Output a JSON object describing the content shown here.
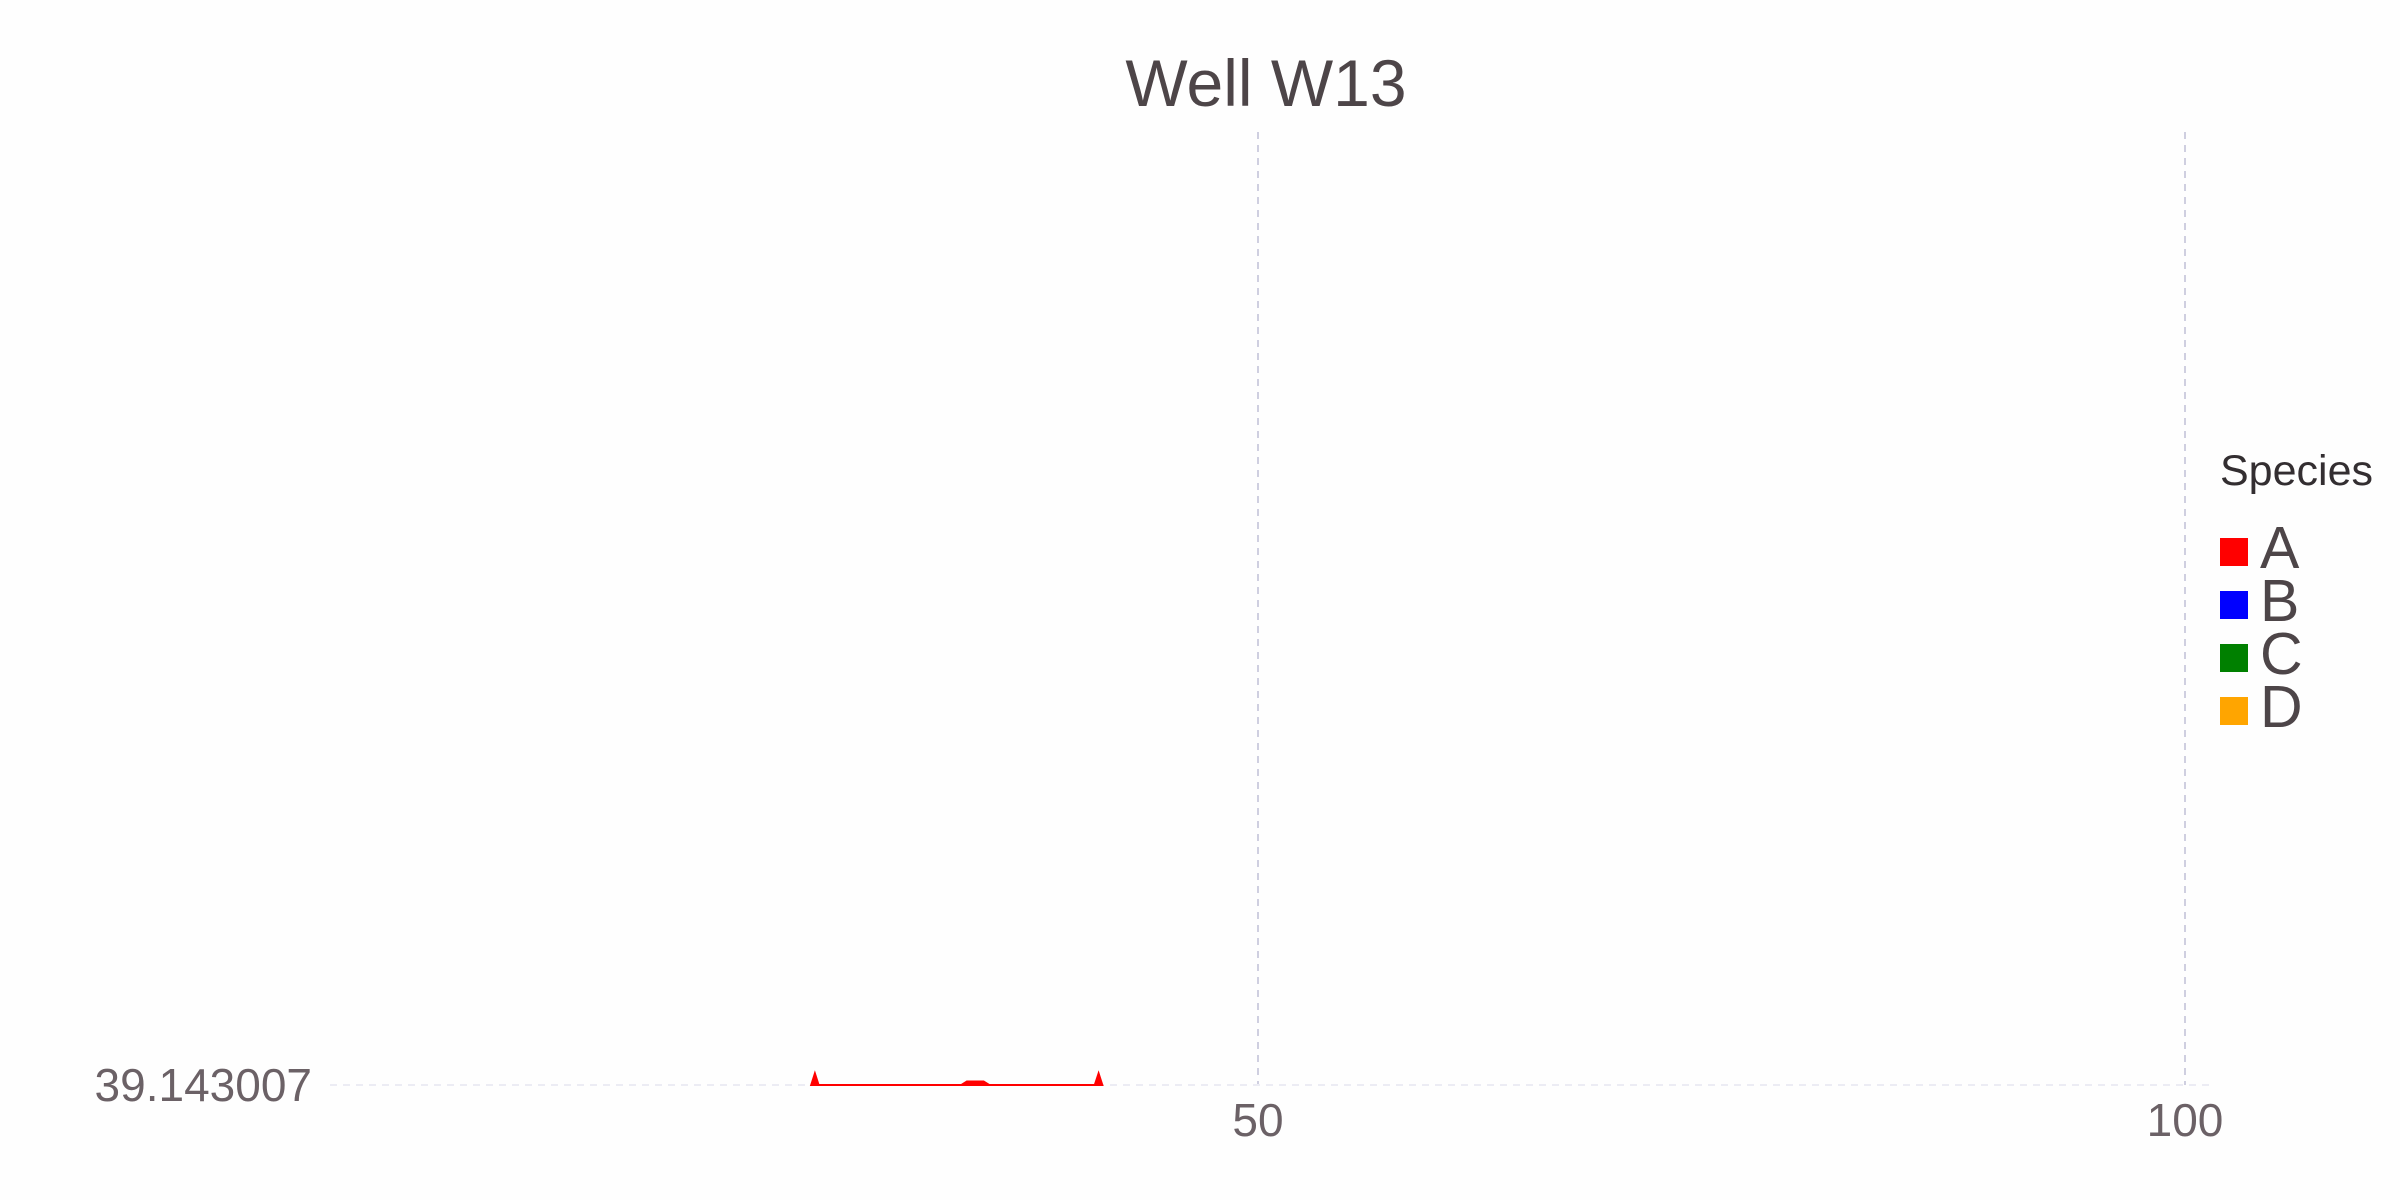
{
  "chart_data": {
    "type": "line",
    "title": "Well W13",
    "xlabel": "",
    "ylabel": "",
    "xlim": [
      0,
      102
    ],
    "x_ticks": [
      50,
      100
    ],
    "x_tick_labels": [
      "50",
      "100"
    ],
    "y_ticks": [
      39.143007
    ],
    "y_tick_labels": [
      "39.143007"
    ],
    "grid": true,
    "legend": {
      "title": "Species",
      "placement": "right",
      "entries": [
        {
          "label": "A",
          "color": "#ff0000"
        },
        {
          "label": "B",
          "color": "#0000ff"
        },
        {
          "label": "C",
          "color": "#008000"
        },
        {
          "label": "D",
          "color": "#ffa500"
        }
      ]
    },
    "series": [
      {
        "name": "A",
        "color": "#ff0000",
        "x": [
          25.9,
          26.1,
          26.3,
          34.0,
          34.3,
          35.2,
          35.5,
          41.2,
          41.4,
          41.6
        ],
        "y": [
          39.143007,
          39.1545,
          39.143007,
          39.143007,
          39.1465,
          39.1465,
          39.143007,
          39.143007,
          39.1545,
          39.143007
        ]
      },
      {
        "name": "B",
        "color": "#0000ff",
        "x": [],
        "y": []
      },
      {
        "name": "C",
        "color": "#008000",
        "x": [],
        "y": []
      },
      {
        "name": "D",
        "color": "#ffa500",
        "x": [],
        "y": []
      }
    ]
  }
}
